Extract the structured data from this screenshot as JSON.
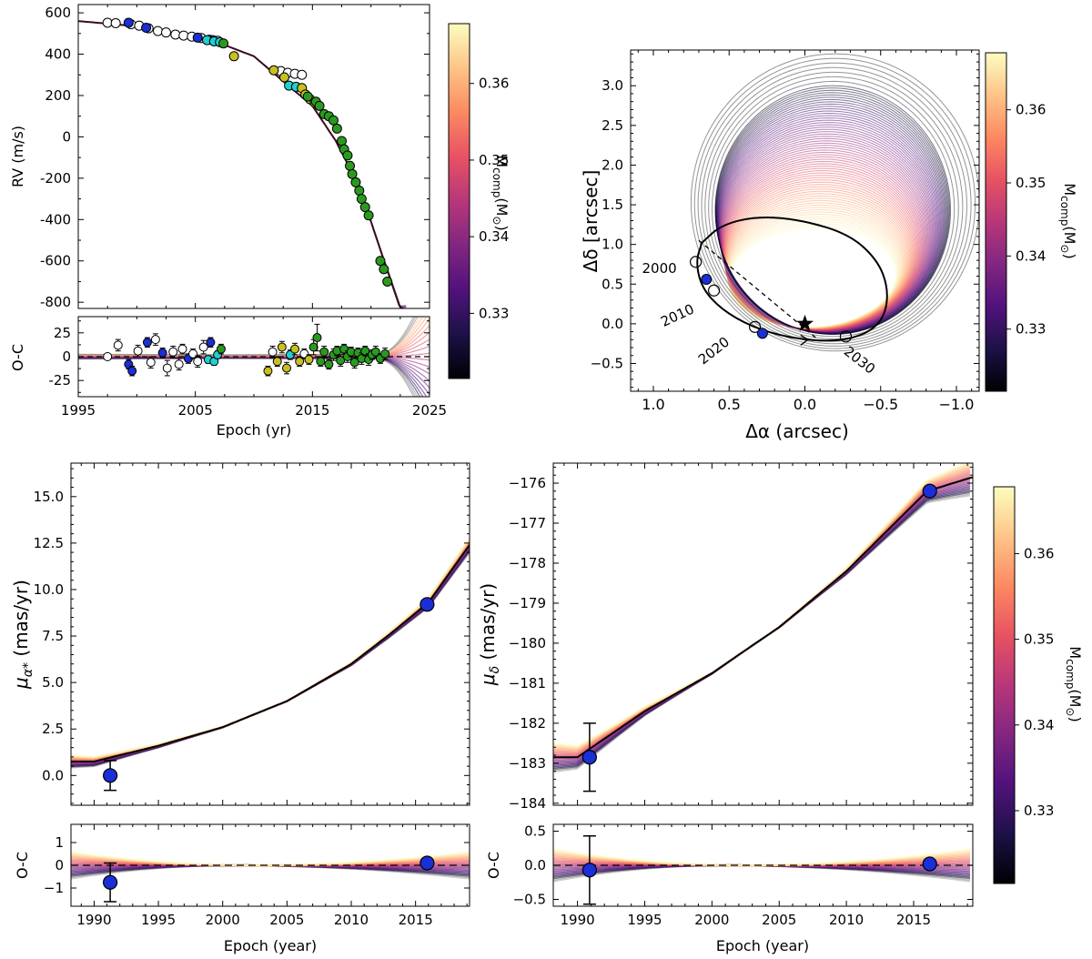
{
  "figure": {
    "cbar_label": "M",
    "cbar_sub": "comp",
    "cbar_unit": "(M",
    "cbar_sun": "⊙",
    "cbar_close": ")"
  },
  "colors": {
    "rv_groups": [
      "#ffffff",
      "#1a2fd6",
      "#1fd0d0",
      "#c8c020",
      "#2a9a1f"
    ],
    "cmap": [
      "#000004",
      "#1d1147",
      "#51127c",
      "#822681",
      "#b73779",
      "#e75263",
      "#fc8961",
      "#fec488",
      "#fcfdbf"
    ]
  },
  "chart_data": [
    {
      "id": "rv",
      "type": "scatter",
      "title": "",
      "xlabel": "Epoch (yr)",
      "ylabel": "RV (m/s)",
      "xlim": [
        1995,
        2025
      ],
      "ylim": [
        -830,
        640
      ],
      "xticks": [
        1995,
        2005,
        2015,
        2025
      ],
      "yticks": [
        600,
        400,
        200,
        0,
        -200,
        -400,
        -600,
        -800
      ],
      "model": {
        "t0": 1995,
        "rv0": 560,
        "curve": [
          [
            1995,
            560
          ],
          [
            2000,
            535
          ],
          [
            2005,
            480
          ],
          [
            2007,
            455
          ],
          [
            2010,
            390
          ],
          [
            2013,
            245
          ],
          [
            2015,
            150
          ],
          [
            2017,
            -20
          ],
          [
            2019,
            -240
          ],
          [
            2021,
            -580
          ],
          [
            2022.5,
            -830
          ]
        ]
      },
      "series": [
        {
          "name": "Group A (open)",
          "points": [
            [
              1997.5,
              552
            ],
            [
              1998.2,
              550
            ],
            [
              1999.5,
              545
            ],
            [
              2000.2,
              538
            ],
            [
              2001,
              525
            ],
            [
              2001.8,
              512
            ],
            [
              2002.5,
              505
            ],
            [
              2003.3,
              495
            ],
            [
              2004,
              490
            ],
            [
              2004.7,
              485
            ],
            [
              2005.5,
              478
            ],
            [
              2006.2,
              470
            ],
            [
              2006.9,
              465
            ],
            [
              2012.3,
              318
            ],
            [
              2012.9,
              310
            ],
            [
              2013.5,
              305
            ],
            [
              2014.1,
              300
            ]
          ]
        },
        {
          "name": "Group B (blue)",
          "points": [
            [
              1999.3,
              552
            ],
            [
              2000.8,
              528
            ],
            [
              2005.2,
              480
            ],
            [
              2006.5,
              468
            ]
          ]
        },
        {
          "name": "Group C (cyan)",
          "points": [
            [
              2006,
              468
            ],
            [
              2006.6,
              462
            ],
            [
              2007.1,
              458
            ],
            [
              2013,
              248
            ],
            [
              2013.6,
              242
            ]
          ]
        },
        {
          "name": "Group D (yellow)",
          "points": [
            [
              2008.3,
              390
            ],
            [
              2011.7,
              322
            ],
            [
              2012.6,
              288
            ],
            [
              2014.1,
              236
            ],
            [
              2014.4,
              205
            ],
            [
              2014.8,
              182
            ],
            [
              2015.2,
              165
            ]
          ]
        },
        {
          "name": "Group E (green)",
          "points": [
            [
              2007.4,
              452
            ],
            [
              2014.6,
              195
            ],
            [
              2015.3,
              170
            ],
            [
              2015.6,
              150
            ],
            [
              2016,
              110
            ],
            [
              2016.4,
              100
            ],
            [
              2016.8,
              80
            ],
            [
              2017.1,
              40
            ],
            [
              2017.5,
              -20
            ],
            [
              2017.7,
              -60
            ],
            [
              2018,
              -90
            ],
            [
              2018.2,
              -140
            ],
            [
              2018.4,
              -180
            ],
            [
              2018.7,
              -220
            ],
            [
              2019,
              -260
            ],
            [
              2019.2,
              -300
            ],
            [
              2019.5,
              -340
            ],
            [
              2019.8,
              -380
            ],
            [
              2020.8,
              -600
            ],
            [
              2021.1,
              -640
            ],
            [
              2021.4,
              -700
            ]
          ]
        }
      ],
      "residuals": {
        "ylabel": "O-C",
        "ylim": [
          -42,
          42
        ],
        "yticks": [
          25,
          0,
          -25
        ],
        "points": [
          [
            1997.5,
            0,
            "A",
            0
          ],
          [
            1998.4,
            12,
            "A",
            6
          ],
          [
            1999.3,
            -8,
            "B",
            5
          ],
          [
            1999.6,
            -15,
            "B",
            5
          ],
          [
            2000.1,
            6,
            "A",
            6
          ],
          [
            2000.9,
            15,
            "B",
            5
          ],
          [
            2001.2,
            -6,
            "A",
            6
          ],
          [
            2001.6,
            18,
            "A",
            6
          ],
          [
            2002.2,
            4,
            "B",
            5
          ],
          [
            2002.6,
            -12,
            "A",
            8
          ],
          [
            2003.1,
            5,
            "A",
            6
          ],
          [
            2003.6,
            -8,
            "A",
            6
          ],
          [
            2003.9,
            8,
            "A",
            5
          ],
          [
            2004.4,
            -2,
            "B",
            5
          ],
          [
            2004.8,
            3,
            "A",
            5
          ],
          [
            2005.2,
            -5,
            "A",
            6
          ],
          [
            2005.7,
            10,
            "A",
            7
          ],
          [
            2006.1,
            -3,
            "C",
            4
          ],
          [
            2006.3,
            15,
            "B",
            5
          ],
          [
            2006.6,
            -5,
            "C",
            4
          ],
          [
            2006.9,
            2,
            "C",
            4
          ],
          [
            2007.2,
            8,
            "E",
            5
          ],
          [
            2011.2,
            -15,
            "D",
            5
          ],
          [
            2011.6,
            5,
            "A",
            6
          ],
          [
            2012,
            -5,
            "D",
            5
          ],
          [
            2012.4,
            10,
            "D",
            6
          ],
          [
            2012.8,
            -12,
            "D",
            6
          ],
          [
            2013.1,
            2,
            "C",
            5
          ],
          [
            2013.5,
            8,
            "D",
            6
          ],
          [
            2013.9,
            -5,
            "D",
            5
          ],
          [
            2014.3,
            3,
            "A",
            5
          ],
          [
            2014.7,
            -3,
            "D",
            5
          ],
          [
            2015.1,
            10,
            "E",
            8
          ],
          [
            2015.4,
            20,
            "E",
            14
          ],
          [
            2015.7,
            -5,
            "E",
            5
          ],
          [
            2016,
            5,
            "E",
            6
          ],
          [
            2016.4,
            -8,
            "E",
            5
          ],
          [
            2016.8,
            2,
            "E",
            6
          ],
          [
            2017.1,
            6,
            "E",
            5
          ],
          [
            2017.4,
            -4,
            "E",
            6
          ],
          [
            2017.7,
            8,
            "E",
            5
          ],
          [
            2018,
            0,
            "E",
            6
          ],
          [
            2018.3,
            5,
            "E",
            5
          ],
          [
            2018.6,
            -6,
            "E",
            6
          ],
          [
            2018.9,
            4,
            "E",
            5
          ],
          [
            2019.2,
            -2,
            "E",
            6
          ],
          [
            2019.5,
            6,
            "E",
            5
          ],
          [
            2019.8,
            -3,
            "E",
            6
          ],
          [
            2020.1,
            2,
            "E",
            5
          ],
          [
            2020.4,
            5,
            "E",
            6
          ],
          [
            2020.8,
            -2,
            "E",
            5
          ],
          [
            2021.2,
            3,
            "E",
            6
          ]
        ]
      }
    },
    {
      "id": "orbit",
      "type": "line",
      "title": "",
      "xlabel": "Δα (arcsec)",
      "ylabel": "Δδ [arcsec]",
      "xlim": [
        1.15,
        -1.15
      ],
      "ylim": [
        -0.85,
        3.45
      ],
      "xticks": [
        1.0,
        0.5,
        0.0,
        -0.5,
        -1.0
      ],
      "xtick_labels": [
        "1.0",
        "0.5",
        "0.0",
        "−0.5",
        "−1.0"
      ],
      "yticks": [
        3.0,
        2.5,
        2.0,
        1.5,
        1.0,
        0.5,
        0.0,
        -0.5
      ],
      "ytick_labels": [
        "3.0",
        "2.5",
        "2.0",
        "1.5",
        "1.0",
        "0.5",
        "0.0",
        "−0.5"
      ],
      "best_orbit": [
        [
          0.68,
          1.02
        ],
        [
          0.72,
          0.78
        ],
        [
          0.68,
          0.45
        ],
        [
          0.55,
          0.18
        ],
        [
          0.35,
          -0.04
        ],
        [
          0.1,
          -0.18
        ],
        [
          -0.2,
          -0.23
        ],
        [
          -0.42,
          -0.12
        ],
        [
          -0.53,
          0.1
        ],
        [
          -0.55,
          0.45
        ],
        [
          -0.48,
          0.8
        ],
        [
          -0.3,
          1.12
        ],
        [
          0.0,
          1.3
        ],
        [
          0.3,
          1.36
        ],
        [
          0.55,
          1.25
        ],
        [
          0.68,
          1.02
        ]
      ],
      "host_star": [
        0.0,
        0.0
      ],
      "line_of_nodes": [
        [
          0.7,
          1.05
        ],
        [
          -0.1,
          -0.22
        ]
      ],
      "measured_positions": [
        [
          0.65,
          0.56
        ],
        [
          0.28,
          -0.12
        ]
      ],
      "epoch_markers": [
        {
          "label": "2000",
          "pos": [
            0.72,
            0.78
          ]
        },
        {
          "label": "2010",
          "pos": [
            0.6,
            0.42
          ]
        },
        {
          "label": "2020",
          "pos": [
            0.33,
            -0.04
          ]
        },
        {
          "label": "2030",
          "pos": [
            -0.27,
            -0.16
          ]
        }
      ]
    },
    {
      "id": "pmra",
      "type": "line",
      "title": "",
      "xlabel": "Epoch (year)",
      "ylabel": "μα* (mas/yr)",
      "ylabel_main": "μ",
      "ylabel_sub": "α*",
      "ylabel_unit": " (mas/yr)",
      "xlim": [
        1988.2,
        2019.2
      ],
      "ylim": [
        -1.6,
        16.8
      ],
      "xticks": [
        1990,
        1995,
        2000,
        2005,
        2010,
        2015
      ],
      "yticks": [
        0.0,
        2.5,
        5.0,
        7.5,
        10.0,
        12.5,
        15.0
      ],
      "ytick_labels": [
        "0.0",
        "2.5",
        "5.0",
        "7.5",
        "10.0",
        "12.5",
        "15.0"
      ],
      "best_model": [
        [
          1990,
          0.75
        ],
        [
          1995,
          1.6
        ],
        [
          2000,
          2.6
        ],
        [
          2005,
          4.0
        ],
        [
          2010,
          6.0
        ],
        [
          2013,
          7.6
        ],
        [
          2016,
          9.3
        ],
        [
          2019.2,
          12.4
        ]
      ],
      "observations": [
        {
          "epoch": 1991.25,
          "value": 0.0,
          "err": 0.8
        },
        {
          "epoch": 2015.9,
          "value": 9.2,
          "err": 0.1
        }
      ],
      "residuals": {
        "ylabel": "O-C",
        "ylim": [
          -1.8,
          1.8
        ],
        "yticks": [
          1,
          0,
          -1
        ],
        "ytick_labels": [
          "1",
          "0",
          "−1"
        ],
        "points": [
          {
            "epoch": 1991.25,
            "value": -0.75,
            "err": 0.85
          },
          {
            "epoch": 2015.9,
            "value": 0.1,
            "err": 0.1
          }
        ]
      }
    },
    {
      "id": "pmdec",
      "type": "line",
      "title": "",
      "xlabel": "Epoch (year)",
      "ylabel": "μδ (mas/yr)",
      "ylabel_main": "μ",
      "ylabel_sub": "δ",
      "ylabel_unit": " (mas/yr)",
      "xlim": [
        1988.2,
        2019.4
      ],
      "ylim": [
        -184.05,
        -175.5
      ],
      "xticks": [
        1990,
        1995,
        2000,
        2005,
        2010,
        2015
      ],
      "yticks": [
        -176,
        -177,
        -178,
        -179,
        -180,
        -181,
        -182,
        -183,
        -184
      ],
      "ytick_labels": [
        "−176",
        "−177",
        "−178",
        "−179",
        "−180",
        "−181",
        "−182",
        "−183",
        "−184"
      ],
      "best_model": [
        [
          1990,
          -182.85
        ],
        [
          1995,
          -181.7
        ],
        [
          2000,
          -180.75
        ],
        [
          2005,
          -179.6
        ],
        [
          2010,
          -178.2
        ],
        [
          2013,
          -177.2
        ],
        [
          2016,
          -176.2
        ],
        [
          2019.4,
          -175.85
        ]
      ],
      "observations": [
        {
          "epoch": 1990.9,
          "value": -182.85,
          "err": 0.85
        },
        {
          "epoch": 2016.2,
          "value": -176.2,
          "err": 0.05
        }
      ],
      "residuals": {
        "ylabel": "O-C",
        "ylim": [
          -0.6,
          0.6
        ],
        "yticks": [
          0.5,
          0.0,
          -0.5
        ],
        "ytick_labels": [
          "0.5",
          "0.0",
          "−0.5"
        ],
        "points": [
          {
            "epoch": 1990.9,
            "value": -0.07,
            "err": 0.5
          },
          {
            "epoch": 2016.2,
            "value": 0.02,
            "err": 0.03
          }
        ]
      }
    }
  ],
  "colorbars": [
    {
      "id": "cbar-rv",
      "ticks": [
        0.33,
        0.34,
        0.35,
        0.36
      ],
      "tick_labels": [
        "0.33",
        "0.34",
        "0.35",
        "0.36"
      ],
      "range": [
        0.3215,
        0.3678
      ]
    },
    {
      "id": "cbar-orbit",
      "ticks": [
        0.33,
        0.34,
        0.35,
        0.36
      ],
      "tick_labels": [
        "0.33",
        "0.34",
        "0.35",
        "0.36"
      ],
      "range": [
        0.3215,
        0.3678
      ]
    },
    {
      "id": "cbar-pm",
      "ticks": [
        0.33,
        0.34,
        0.35,
        0.36
      ],
      "tick_labels": [
        "0.33",
        "0.34",
        "0.35",
        "0.36"
      ],
      "range": [
        0.3215,
        0.3678
      ]
    }
  ]
}
